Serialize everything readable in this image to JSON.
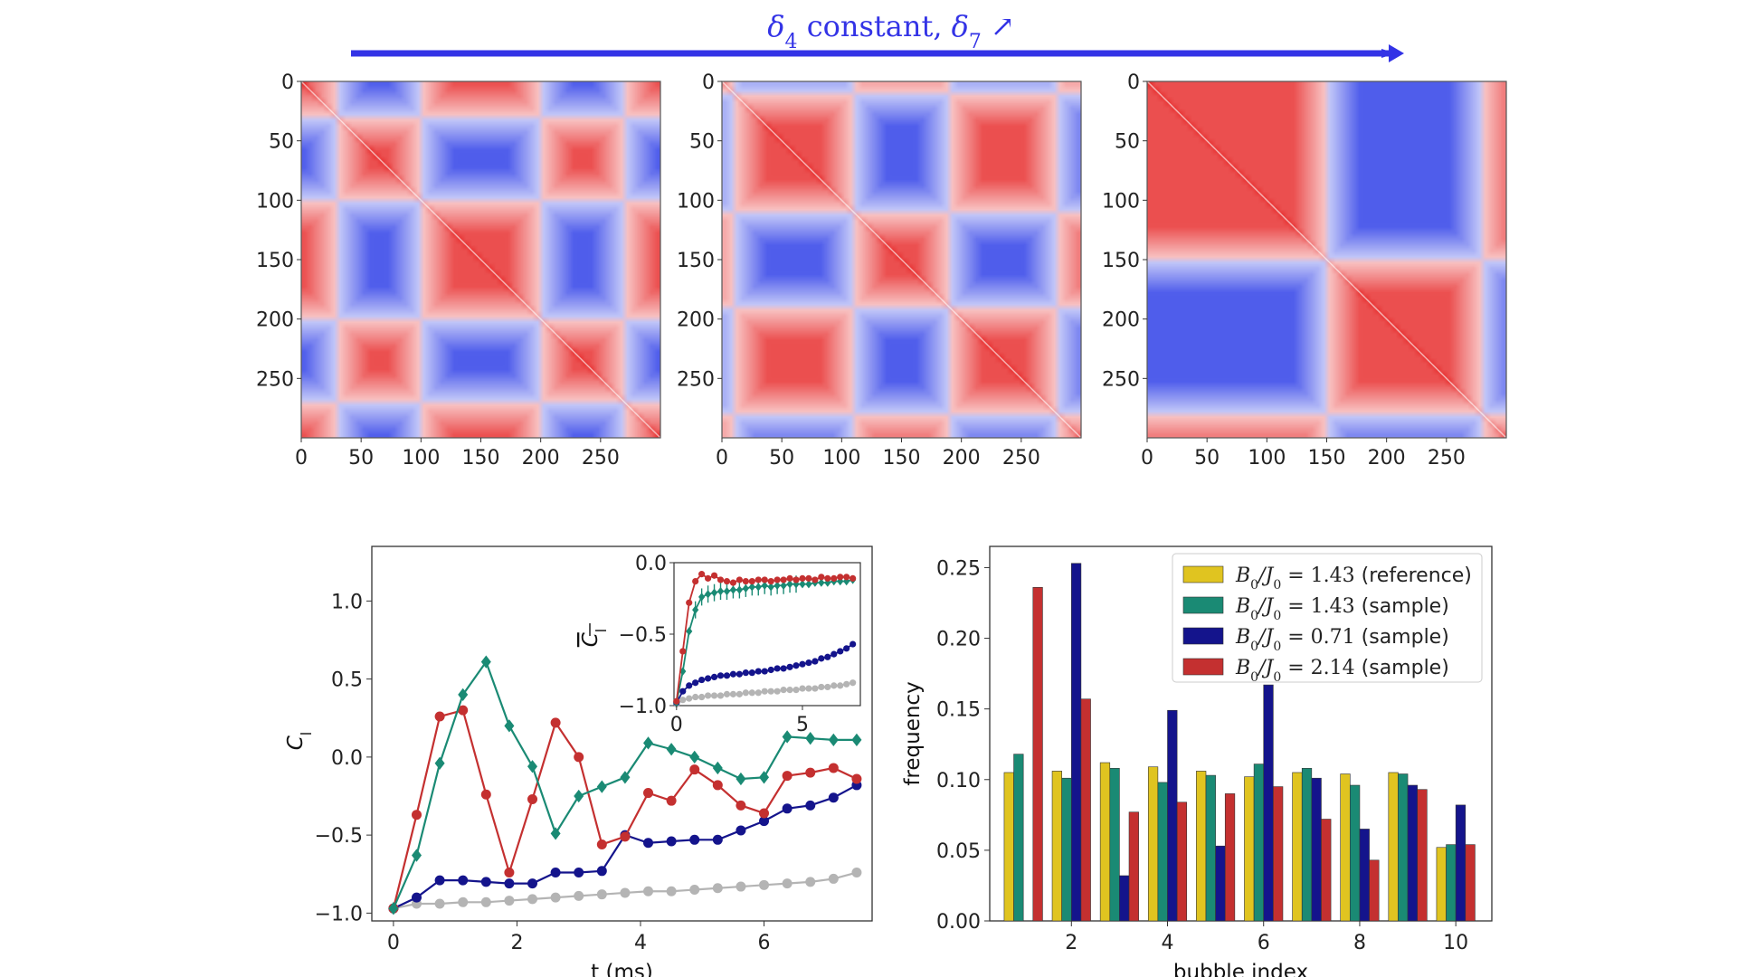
{
  "header": {
    "title_delta4": "δ",
    "title_sub4": "4",
    "title_middle": " constant, ",
    "title_delta7": "δ",
    "title_sub7": "7",
    "title_arrow": "↗",
    "arrow_color": "#3333e6"
  },
  "colors": {
    "positive": "#e83030",
    "negative": "#3040e8",
    "neutral": "#ffffff",
    "teal": "#1a8a74",
    "red": "#c43030",
    "navy": "#14148c",
    "grey": "#b4b4b4",
    "yellow": "#e0c420"
  },
  "chart_data": [
    {
      "type": "heatmap",
      "name": "correlation-matrix-1",
      "xlim": [
        0,
        300
      ],
      "ylim": [
        300,
        0
      ],
      "xticks": [
        0,
        50,
        100,
        150,
        200,
        250
      ],
      "yticks": [
        0,
        50,
        100,
        150,
        200,
        250
      ],
      "domain_boundaries": [
        0,
        30,
        100,
        200,
        270,
        300
      ],
      "domain_signs": [
        1,
        -1,
        1,
        -1,
        1
      ]
    },
    {
      "type": "heatmap",
      "name": "correlation-matrix-2",
      "xlim": [
        0,
        300
      ],
      "ylim": [
        300,
        0
      ],
      "xticks": [
        0,
        50,
        100,
        150,
        200,
        250
      ],
      "yticks": [
        0,
        50,
        100,
        150,
        200,
        250
      ],
      "domain_boundaries": [
        0,
        10,
        110,
        190,
        280,
        300
      ],
      "domain_signs": [
        1,
        -1,
        1,
        -1,
        1
      ]
    },
    {
      "type": "heatmap",
      "name": "correlation-matrix-3",
      "xlim": [
        0,
        300
      ],
      "ylim": [
        300,
        0
      ],
      "xticks": [
        0,
        50,
        100,
        150,
        200,
        250
      ],
      "yticks": [
        0,
        50,
        100,
        150,
        200,
        250
      ],
      "domain_boundaries": [
        0,
        150,
        280,
        300
      ],
      "domain_signs": [
        1,
        -1,
        1
      ]
    },
    {
      "type": "line",
      "name": "correlation-vs-time",
      "xlabel": "t (ms)",
      "ylabel_main": "C",
      "ylabel_sub": "l",
      "xlim": [
        -0.35,
        7.75
      ],
      "ylim": [
        -1.05,
        1.35
      ],
      "xticks": [
        0,
        2,
        4,
        6
      ],
      "yticks": [
        -1.0,
        -0.5,
        0.0,
        0.5,
        1.0
      ],
      "ytick_labels": [
        "−1.0",
        "−0.5",
        "0.0",
        "0.5",
        "1.0"
      ],
      "x": [
        0,
        0.375,
        0.75,
        1.125,
        1.5,
        1.875,
        2.25,
        2.625,
        3.0,
        3.375,
        3.75,
        4.125,
        4.5,
        4.875,
        5.25,
        5.625,
        6.0,
        6.375,
        6.75,
        7.125,
        7.5
      ],
      "series": [
        {
          "color": "#1a8a74",
          "marker": "diamond",
          "values": [
            -0.97,
            -0.63,
            -0.04,
            0.4,
            0.61,
            0.2,
            -0.06,
            -0.49,
            -0.25,
            -0.19,
            -0.13,
            0.09,
            0.05,
            0.0,
            -0.07,
            -0.14,
            -0.13,
            0.13,
            0.12,
            0.11,
            0.11
          ]
        },
        {
          "color": "#c43030",
          "marker": "circle",
          "values": [
            -0.97,
            -0.37,
            0.26,
            0.3,
            -0.24,
            -0.74,
            -0.27,
            0.22,
            0.0,
            -0.56,
            -0.51,
            -0.23,
            -0.28,
            -0.08,
            -0.18,
            -0.31,
            -0.36,
            -0.12,
            -0.1,
            -0.07,
            -0.14
          ]
        },
        {
          "color": "#14148c",
          "marker": "circle",
          "values": [
            -0.97,
            -0.9,
            -0.79,
            -0.79,
            -0.8,
            -0.81,
            -0.81,
            -0.74,
            -0.74,
            -0.73,
            -0.5,
            -0.55,
            -0.54,
            -0.53,
            -0.53,
            -0.47,
            -0.41,
            -0.33,
            -0.31,
            -0.26,
            -0.18
          ]
        },
        {
          "color": "#b4b4b4",
          "marker": "circle",
          "values": [
            -0.97,
            -0.94,
            -0.94,
            -0.93,
            -0.93,
            -0.92,
            -0.91,
            -0.9,
            -0.89,
            -0.88,
            -0.87,
            -0.86,
            -0.86,
            -0.85,
            -0.84,
            -0.83,
            -0.82,
            -0.81,
            -0.8,
            -0.78,
            -0.74
          ]
        }
      ],
      "inset": {
        "type": "line",
        "ylabel_main": "C",
        "ylabel_sub": "l",
        "xlim": [
          -0.1,
          7.3
        ],
        "ylim": [
          -1.0,
          0.0
        ],
        "xticks": [
          0,
          5
        ],
        "yticks": [
          -1.0,
          -0.5,
          0.0
        ],
        "ytick_labels": [
          "−1.0",
          "−0.5",
          "0.0"
        ],
        "x": [
          0,
          0.25,
          0.5,
          0.75,
          1.0,
          1.25,
          1.5,
          1.75,
          2.0,
          2.25,
          2.5,
          2.75,
          3.0,
          3.25,
          3.5,
          3.75,
          4.0,
          4.25,
          4.5,
          4.75,
          5.0,
          5.25,
          5.5,
          5.75,
          6.0,
          6.25,
          6.5,
          6.75,
          7.0
        ],
        "series": [
          {
            "color": "#c43030",
            "marker": "circle",
            "values": [
              -0.97,
              -0.62,
              -0.28,
              -0.13,
              -0.08,
              -0.11,
              -0.09,
              -0.12,
              -0.13,
              -0.14,
              -0.12,
              -0.13,
              -0.13,
              -0.12,
              -0.12,
              -0.13,
              -0.12,
              -0.12,
              -0.11,
              -0.12,
              -0.11,
              -0.11,
              -0.12,
              -0.1,
              -0.11,
              -0.11,
              -0.1,
              -0.1,
              -0.11
            ]
          },
          {
            "color": "#1a8a74",
            "marker": "diamond",
            "values": [
              -0.98,
              -0.76,
              -0.48,
              -0.33,
              -0.24,
              -0.22,
              -0.21,
              -0.2,
              -0.2,
              -0.19,
              -0.19,
              -0.18,
              -0.17,
              -0.17,
              -0.16,
              -0.17,
              -0.16,
              -0.16,
              -0.15,
              -0.15,
              -0.15,
              -0.15,
              -0.14,
              -0.14,
              -0.14,
              -0.13,
              -0.13,
              -0.13,
              -0.12
            ]
          },
          {
            "color": "#14148c",
            "marker": "circle",
            "values": [
              -0.98,
              -0.9,
              -0.86,
              -0.84,
              -0.82,
              -0.81,
              -0.8,
              -0.79,
              -0.79,
              -0.78,
              -0.78,
              -0.77,
              -0.77,
              -0.76,
              -0.76,
              -0.75,
              -0.74,
              -0.74,
              -0.73,
              -0.72,
              -0.71,
              -0.7,
              -0.69,
              -0.67,
              -0.66,
              -0.64,
              -0.62,
              -0.6,
              -0.57
            ]
          },
          {
            "color": "#b4b4b4",
            "marker": "circle",
            "values": [
              -0.99,
              -0.96,
              -0.95,
              -0.94,
              -0.94,
              -0.93,
              -0.93,
              -0.93,
              -0.92,
              -0.92,
              -0.92,
              -0.91,
              -0.91,
              -0.91,
              -0.9,
              -0.9,
              -0.9,
              -0.89,
              -0.89,
              -0.89,
              -0.88,
              -0.88,
              -0.88,
              -0.87,
              -0.87,
              -0.86,
              -0.86,
              -0.85,
              -0.84
            ]
          }
        ]
      }
    },
    {
      "type": "bar",
      "name": "bubble-frequency",
      "xlabel": "bubble index",
      "ylabel": "frequency",
      "xlim": [
        0.3,
        10.75
      ],
      "ylim": [
        0,
        0.265
      ],
      "xticks": [
        2,
        4,
        6,
        8,
        10
      ],
      "yticks": [
        0.0,
        0.05,
        0.1,
        0.15,
        0.2,
        0.25
      ],
      "ytick_labels": [
        "0.00",
        "0.05",
        "0.10",
        "0.15",
        "0.20",
        "0.25"
      ],
      "categories": [
        1,
        2,
        3,
        4,
        5,
        6,
        7,
        8,
        9,
        10
      ],
      "legend_position": "top-right",
      "series": [
        {
          "name_math": "B",
          "name_sub1": "0",
          "name_mid": "/J",
          "name_sub2": "0",
          "name_eq": " = 1.43",
          "name_tail": " (reference)",
          "color": "#e0c420",
          "values": [
            0.105,
            0.106,
            0.112,
            0.109,
            0.106,
            0.102,
            0.105,
            0.104,
            0.105,
            0.052
          ]
        },
        {
          "name_math": "B",
          "name_sub1": "0",
          "name_mid": "/J",
          "name_sub2": "0",
          "name_eq": " = 1.43",
          "name_tail": " (sample)",
          "color": "#1a8a74",
          "values": [
            0.118,
            0.101,
            0.108,
            0.098,
            0.103,
            0.111,
            0.108,
            0.096,
            0.104,
            0.054
          ]
        },
        {
          "name_math": "B",
          "name_sub1": "0",
          "name_mid": "/J",
          "name_sub2": "0",
          "name_eq": " = 0.71",
          "name_tail": " (sample)",
          "color": "#14148c",
          "values": [
            0.0,
            0.253,
            0.032,
            0.149,
            0.053,
            0.167,
            0.101,
            0.065,
            0.096,
            0.082
          ]
        },
        {
          "name_math": "B",
          "name_sub1": "0",
          "name_mid": "/J",
          "name_sub2": "0",
          "name_eq": " = 2.14",
          "name_tail": " (sample)",
          "color": "#c43030",
          "values": [
            0.236,
            0.157,
            0.077,
            0.084,
            0.09,
            0.095,
            0.072,
            0.043,
            0.093,
            0.054
          ]
        }
      ]
    }
  ]
}
